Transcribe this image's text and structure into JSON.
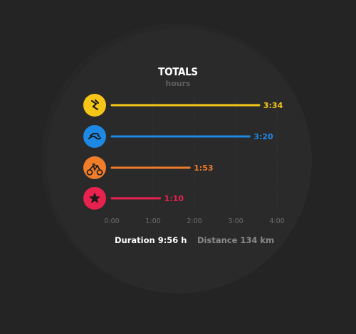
{
  "header": {
    "title": "TOTALS",
    "subtitle": "hours"
  },
  "chart_data": {
    "type": "bar",
    "orientation": "horizontal",
    "title": "TOTALS",
    "subtitle": "hours",
    "xlim": [
      0,
      4
    ],
    "x_ticks": [
      "0:00",
      "1:00",
      "2:00",
      "3:00",
      "4:00"
    ],
    "grid": true,
    "categories": [
      "running-icon",
      "swimming-icon",
      "cycling-icon",
      "other-icon"
    ],
    "values": [
      3.567,
      3.333,
      1.883,
      1.167
    ],
    "data_labels": [
      "3:34",
      "3:20",
      "1:53",
      "1:10"
    ],
    "colors": [
      "#f5c518",
      "#1e88e5",
      "#f07d2a",
      "#e8224f"
    ]
  },
  "footer": {
    "duration_label": "Duration",
    "duration_value": "9:56 h",
    "distance_label": "Distance",
    "distance_value": "134 km"
  }
}
